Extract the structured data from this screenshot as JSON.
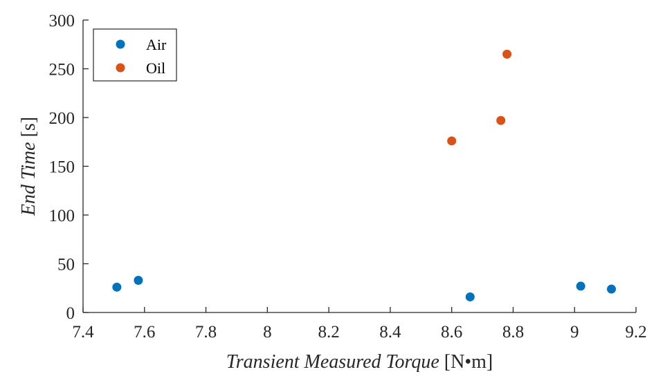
{
  "chart_data": {
    "type": "scatter",
    "title": "",
    "xlabel_italic": "Transient Measured Torque",
    "xlabel_unit": " [N•m]",
    "ylabel_italic": "End Time",
    "ylabel_unit": " [s]",
    "xlim": [
      7.4,
      9.2
    ],
    "ylim": [
      0,
      300
    ],
    "xticks": [
      7.4,
      7.6,
      7.8,
      8,
      8.2,
      8.4,
      8.6,
      8.8,
      9,
      9.2
    ],
    "xtick_labels": [
      "7.4",
      "7.6",
      "7.8",
      "8",
      "8.2",
      "8.4",
      "8.6",
      "8.8",
      "9",
      "9.2"
    ],
    "yticks": [
      0,
      50,
      100,
      150,
      200,
      250,
      300
    ],
    "ytick_labels": [
      "0",
      "50",
      "100",
      "150",
      "200",
      "250",
      "300"
    ],
    "grid": false,
    "legend_position": "top-left",
    "series": [
      {
        "name": "Air",
        "color": "#0072BD",
        "points": [
          {
            "x": 7.51,
            "y": 26
          },
          {
            "x": 7.58,
            "y": 33
          },
          {
            "x": 8.66,
            "y": 16
          },
          {
            "x": 9.02,
            "y": 27
          },
          {
            "x": 9.12,
            "y": 24
          }
        ]
      },
      {
        "name": "Oil",
        "color": "#D95319",
        "points": [
          {
            "x": 8.6,
            "y": 176
          },
          {
            "x": 8.76,
            "y": 197
          },
          {
            "x": 8.78,
            "y": 265
          }
        ]
      }
    ]
  }
}
